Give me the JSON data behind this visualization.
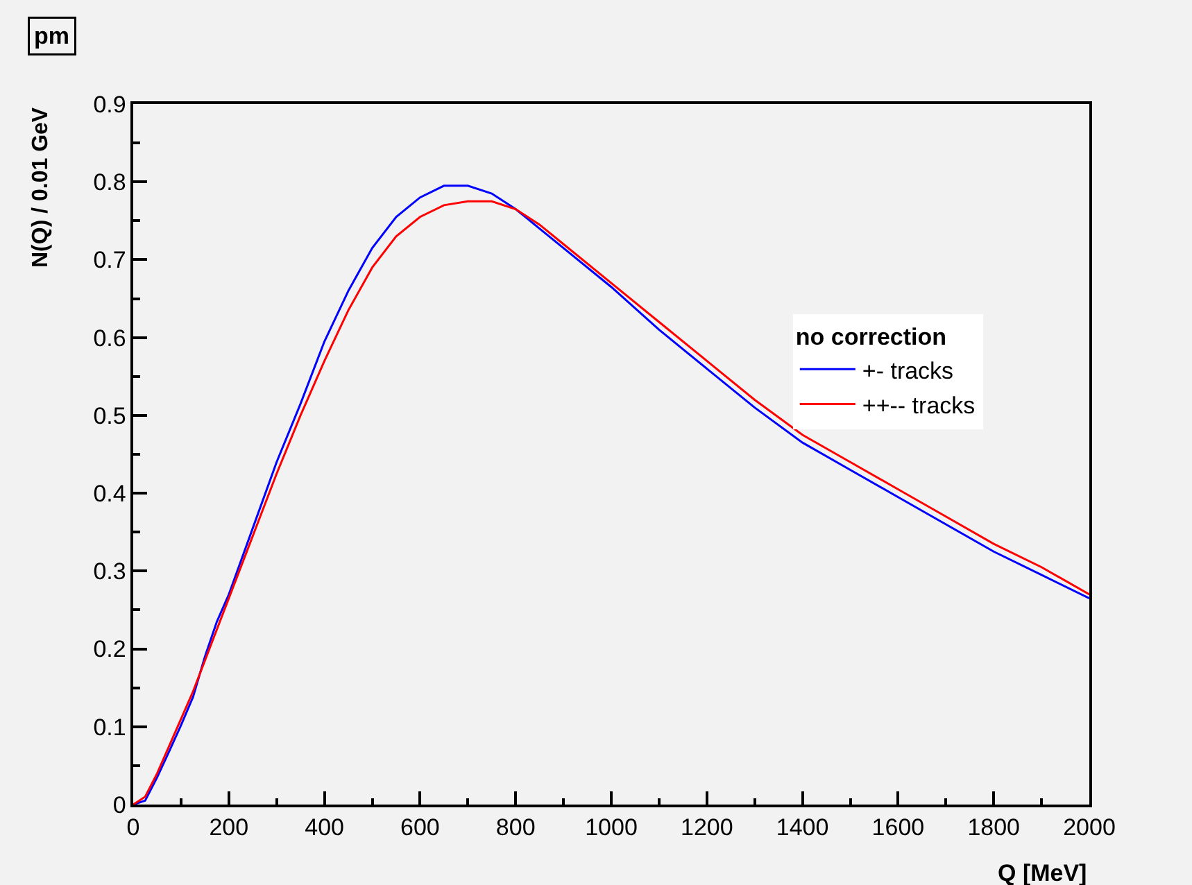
{
  "chart_data": {
    "type": "line",
    "title": "pm",
    "xlabel": "Q [MeV]",
    "ylabel": "N(Q) / 0.01 GeV",
    "legend_title": "no correction",
    "legend": "right",
    "grid": false,
    "marker": "none",
    "line_style": "solid",
    "x": [
      0,
      25,
      50,
      75,
      100,
      125,
      150,
      175,
      200,
      250,
      300,
      350,
      400,
      450,
      500,
      550,
      600,
      650,
      700,
      750,
      800,
      850,
      900,
      1000,
      1100,
      1200,
      1300,
      1400,
      1500,
      1600,
      1700,
      1800,
      1900,
      2000
    ],
    "xlim": [
      0,
      2000
    ],
    "xticks": [
      0,
      200,
      400,
      600,
      800,
      1000,
      1200,
      1400,
      1600,
      1800,
      2000
    ],
    "ylim": [
      0,
      0.9
    ],
    "yticks": [
      0,
      0.1,
      0.2,
      0.3,
      0.4,
      0.5,
      0.6,
      0.7,
      0.8,
      0.9
    ],
    "series": [
      {
        "name": "+- tracks",
        "color": "#0000ff",
        "values": [
          0,
          0.005,
          0.035,
          0.068,
          0.102,
          0.138,
          0.19,
          0.235,
          0.27,
          0.355,
          0.44,
          0.515,
          0.595,
          0.66,
          0.715,
          0.755,
          0.78,
          0.795,
          0.795,
          0.785,
          0.765,
          0.74,
          0.715,
          0.665,
          0.61,
          0.56,
          0.51,
          0.465,
          0.43,
          0.395,
          0.36,
          0.325,
          0.295,
          0.265
        ]
      },
      {
        "name": "++-- tracks",
        "color": "#ff0000",
        "values": [
          0,
          0.01,
          0.04,
          0.075,
          0.11,
          0.145,
          0.185,
          0.225,
          0.265,
          0.345,
          0.425,
          0.5,
          0.57,
          0.635,
          0.69,
          0.73,
          0.755,
          0.77,
          0.775,
          0.775,
          0.765,
          0.745,
          0.72,
          0.67,
          0.62,
          0.57,
          0.52,
          0.475,
          0.44,
          0.405,
          0.37,
          0.335,
          0.305,
          0.27
        ]
      }
    ]
  }
}
